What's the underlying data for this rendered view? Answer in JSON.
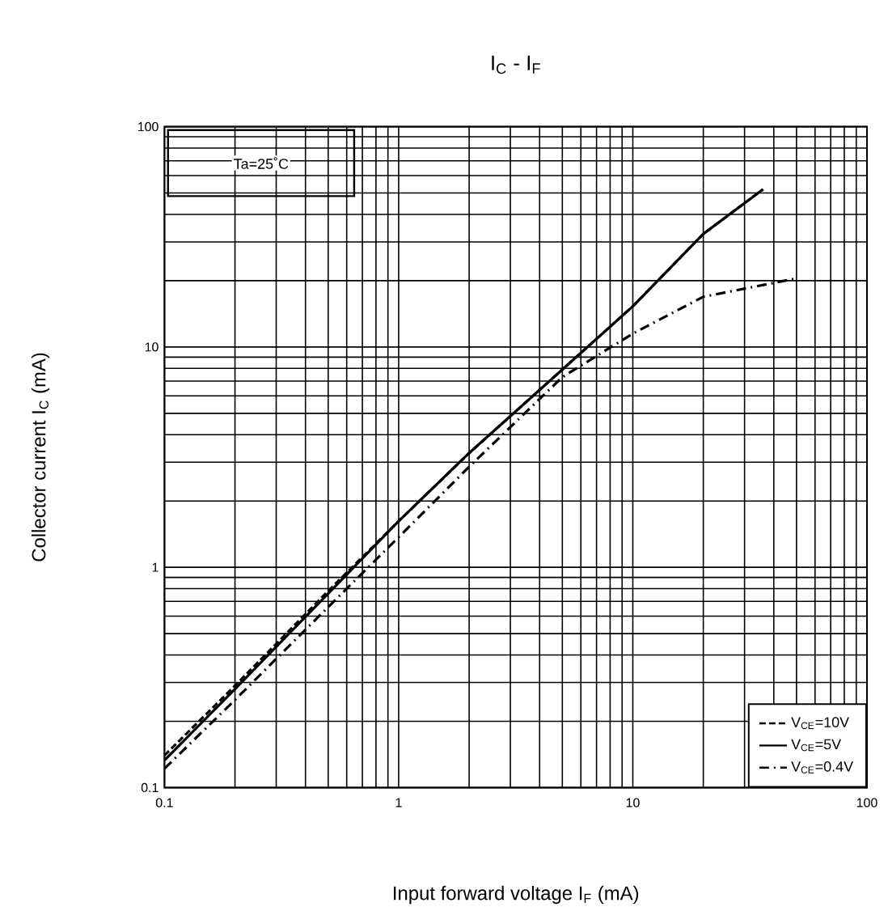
{
  "chart_data": {
    "type": "line",
    "title": "I$_{C}$ - I$_{F}$",
    "xlabel": "Input forward voltage   I$_{F}$   (mA)",
    "ylabel": "Collector current   I$_{C}$   (mA)",
    "log": "xy",
    "xlim": [
      0.1,
      100
    ],
    "ylim": [
      0.1,
      100
    ],
    "xticks": [
      0.1,
      1,
      10,
      100
    ],
    "yticks": [
      0.1,
      1,
      10,
      100
    ],
    "grid": true,
    "legend": "bottom right",
    "annotations": [
      "Ta=25˚C"
    ],
    "series": [
      {
        "name": "V$_{CE}$=10V",
        "color": "#000000",
        "line_style": "dashed",
        "x": [
          0.1,
          0.2,
          0.5,
          1,
          2,
          5,
          10,
          20,
          36
        ],
        "values": [
          0.14,
          0.29,
          0.78,
          1.62,
          3.3,
          7.9,
          15.3,
          32.6,
          52
        ]
      },
      {
        "name": "V$_{CE}$=5V",
        "color": "#000000",
        "line_style": "solid",
        "x": [
          0.1,
          0.2,
          0.5,
          1,
          2,
          5,
          10,
          20,
          36
        ],
        "values": [
          0.133,
          0.28,
          0.76,
          1.62,
          3.3,
          7.9,
          15.3,
          32.6,
          52
        ]
      },
      {
        "name": "V$_{CE}$=0.4V",
        "color": "#000000",
        "line_style": "dashdot",
        "x": [
          0.1,
          0.2,
          0.5,
          1,
          2,
          5,
          10,
          20,
          49
        ],
        "values": [
          0.122,
          0.25,
          0.66,
          1.37,
          2.86,
          7.3,
          11.5,
          16.9,
          20.4
        ]
      }
    ]
  }
}
